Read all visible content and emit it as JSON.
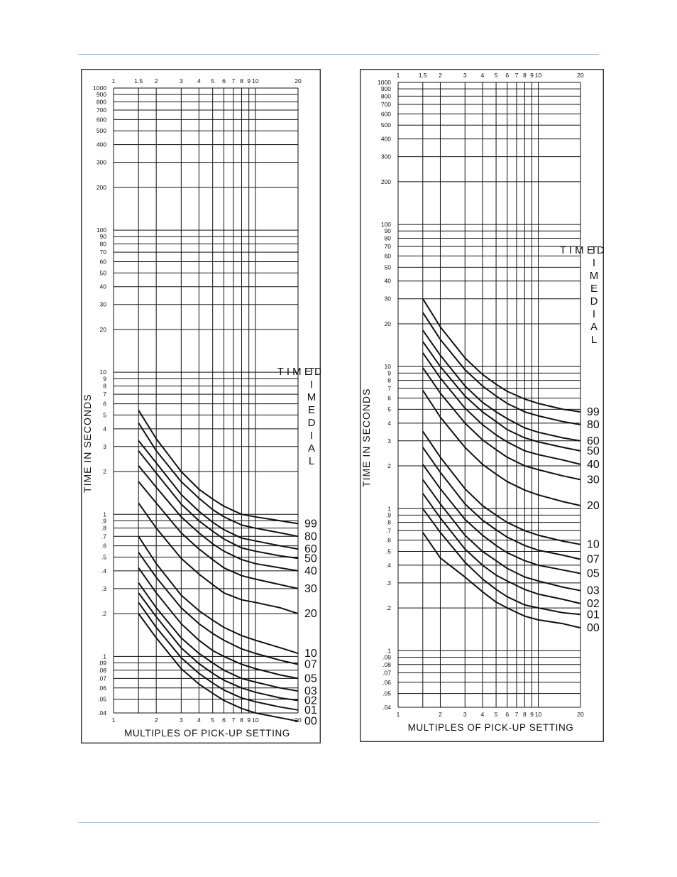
{
  "page": {
    "accent_color": "#8fb6d6"
  },
  "chart_data": [
    {
      "type": "line",
      "x_scale": "log",
      "y_scale": "log",
      "xlim": [
        1,
        20
      ],
      "ylim": [
        0.04,
        1000
      ],
      "xlabel": "MULTIPLES OF PICK-UP SETTING",
      "ylabel": "TIME IN SECONDS",
      "side_label": "T I M E D I A L",
      "x_ticks": [
        1,
        1.5,
        2,
        3,
        4,
        5,
        6,
        7,
        8,
        9,
        10,
        20
      ],
      "x_tick_labels_top": [
        "1",
        "1.5",
        "2",
        "3",
        "4",
        "5",
        "6",
        "7",
        "8",
        "9",
        "10",
        "20"
      ],
      "x_tick_labels_bottom": [
        "1",
        "2",
        "3",
        "4",
        "5",
        "6",
        "7",
        "8",
        "9",
        "10",
        "20"
      ],
      "y_tick_labels": [
        "1000",
        "900",
        "800",
        "700",
        "600",
        "500",
        "400",
        "300",
        "200",
        "100",
        "90",
        "80",
        "70",
        "60",
        "50",
        "40",
        "30",
        "20",
        "10",
        "9",
        "8",
        "7",
        "6",
        "5",
        "4",
        "3",
        "2",
        "1",
        ".9",
        ".8",
        ".7",
        ".6",
        ".5",
        ".4",
        ".3",
        ".2",
        ".1",
        ".09",
        ".08",
        ".07",
        ".06",
        ".05",
        ".04"
      ],
      "grid": true,
      "x": [
        1.5,
        2,
        3,
        4,
        5,
        6,
        8,
        10,
        15,
        20
      ],
      "series": [
        {
          "name": "99",
          "values": [
            5.4,
            3.4,
            2.0,
            1.5,
            1.28,
            1.14,
            1.0,
            0.96,
            0.9,
            0.86
          ]
        },
        {
          "name": "80",
          "values": [
            4.4,
            2.8,
            1.7,
            1.3,
            1.08,
            0.96,
            0.84,
            0.8,
            0.74,
            0.7
          ]
        },
        {
          "name": "60",
          "values": [
            3.3,
            2.3,
            1.38,
            1.05,
            0.88,
            0.78,
            0.68,
            0.65,
            0.6,
            0.57
          ]
        },
        {
          "name": "50",
          "values": [
            2.8,
            1.95,
            1.18,
            0.9,
            0.76,
            0.67,
            0.58,
            0.55,
            0.51,
            0.49
          ]
        },
        {
          "name": "40",
          "values": [
            2.2,
            1.55,
            0.96,
            0.74,
            0.62,
            0.55,
            0.48,
            0.45,
            0.42,
            0.4
          ]
        },
        {
          "name": "30",
          "values": [
            1.7,
            1.2,
            0.74,
            0.57,
            0.48,
            0.42,
            0.37,
            0.35,
            0.32,
            0.3
          ]
        },
        {
          "name": "20",
          "values": [
            1.2,
            0.8,
            0.49,
            0.38,
            0.32,
            0.28,
            0.25,
            0.24,
            0.22,
            0.2
          ]
        },
        {
          "name": "10",
          "values": [
            0.7,
            0.45,
            0.27,
            0.21,
            0.18,
            0.16,
            0.14,
            0.13,
            0.115,
            0.105
          ]
        },
        {
          "name": "07",
          "values": [
            0.54,
            0.36,
            0.22,
            0.17,
            0.145,
            0.13,
            0.113,
            0.105,
            0.094,
            0.088
          ]
        },
        {
          "name": "05",
          "values": [
            0.42,
            0.28,
            0.17,
            0.13,
            0.11,
            0.1,
            0.088,
            0.082,
            0.074,
            0.07
          ]
        },
        {
          "name": "03",
          "values": [
            0.33,
            0.22,
            0.135,
            0.105,
            0.09,
            0.08,
            0.07,
            0.066,
            0.06,
            0.057
          ]
        },
        {
          "name": "02",
          "values": [
            0.28,
            0.19,
            0.115,
            0.089,
            0.076,
            0.068,
            0.06,
            0.056,
            0.051,
            0.049
          ]
        },
        {
          "name": "01",
          "values": [
            0.24,
            0.16,
            0.098,
            0.076,
            0.065,
            0.058,
            0.051,
            0.048,
            0.044,
            0.042
          ]
        },
        {
          "name": "00",
          "values": [
            0.2,
            0.135,
            0.082,
            0.064,
            0.055,
            0.049,
            0.043,
            0.04,
            0.037,
            0.035
          ]
        }
      ]
    },
    {
      "type": "line",
      "x_scale": "log",
      "y_scale": "log",
      "xlim": [
        1,
        20
      ],
      "ylim": [
        0.04,
        1000
      ],
      "xlabel": "MULTIPLES OF PICK-UP SETTING",
      "ylabel": "TIME IN SECONDS",
      "side_label": "T I M E D I A L",
      "x_ticks": [
        1,
        1.5,
        2,
        3,
        4,
        5,
        6,
        7,
        8,
        9,
        10,
        20
      ],
      "x_tick_labels_top": [
        "1",
        "1.5",
        "2",
        "3",
        "4",
        "5",
        "6",
        "7",
        "8",
        "9",
        "10",
        "20"
      ],
      "x_tick_labels_bottom": [
        "1",
        "2",
        "3",
        "4",
        "5",
        "6",
        "7",
        "8",
        "9",
        "10",
        "20"
      ],
      "y_tick_labels": [
        "1000",
        "900",
        "800",
        "700",
        "600",
        "500",
        "400",
        "300",
        "200",
        "100",
        "90",
        "80",
        "70",
        "60",
        "50",
        "40",
        "30",
        "20",
        "10",
        "9",
        "8",
        "7",
        "6",
        "5",
        "4",
        "3",
        "2",
        "1",
        ".9",
        ".8",
        ".7",
        ".6",
        ".5",
        ".4",
        ".3",
        ".2",
        ".1",
        ".09",
        ".08",
        ".07",
        ".06",
        ".05",
        ".04"
      ],
      "grid": true,
      "x": [
        1.5,
        2,
        3,
        4,
        5,
        6,
        8,
        10,
        15,
        20
      ],
      "series": [
        {
          "name": "99",
          "values": [
            30,
            19,
            11.5,
            8.8,
            7.5,
            6.7,
            5.9,
            5.5,
            5.0,
            4.8
          ]
        },
        {
          "name": "80",
          "values": [
            24,
            15.5,
            9.5,
            7.3,
            6.2,
            5.5,
            4.8,
            4.5,
            4.1,
            3.9
          ]
        },
        {
          "name": "60",
          "values": [
            18,
            12,
            7.3,
            5.6,
            4.8,
            4.3,
            3.7,
            3.45,
            3.15,
            3.0
          ]
        },
        {
          "name": "50",
          "values": [
            15,
            10,
            6.2,
            4.8,
            4.1,
            3.6,
            3.15,
            2.95,
            2.7,
            2.55
          ]
        },
        {
          "name": "40",
          "values": [
            12.5,
            8.3,
            5.1,
            3.9,
            3.3,
            2.95,
            2.55,
            2.4,
            2.2,
            2.05
          ]
        },
        {
          "name": "30",
          "values": [
            9.8,
            6.5,
            4.0,
            3.05,
            2.6,
            2.3,
            2.0,
            1.88,
            1.7,
            1.6
          ]
        },
        {
          "name": "20",
          "values": [
            6.8,
            4.4,
            2.7,
            2.05,
            1.75,
            1.55,
            1.35,
            1.25,
            1.12,
            1.05
          ]
        },
        {
          "name": "10",
          "values": [
            3.5,
            2.3,
            1.38,
            1.05,
            0.9,
            0.8,
            0.7,
            0.65,
            0.59,
            0.56
          ]
        },
        {
          "name": "07",
          "values": [
            2.7,
            1.8,
            1.08,
            0.83,
            0.71,
            0.63,
            0.55,
            0.51,
            0.47,
            0.44
          ]
        },
        {
          "name": "05",
          "values": [
            2.05,
            1.38,
            0.84,
            0.65,
            0.55,
            0.49,
            0.43,
            0.4,
            0.37,
            0.35
          ]
        },
        {
          "name": "03",
          "values": [
            1.6,
            1.08,
            0.65,
            0.5,
            0.43,
            0.38,
            0.33,
            0.31,
            0.28,
            0.265
          ]
        },
        {
          "name": "02",
          "values": [
            1.28,
            0.86,
            0.52,
            0.4,
            0.34,
            0.31,
            0.27,
            0.25,
            0.23,
            0.215
          ]
        },
        {
          "name": "01",
          "values": [
            1.0,
            0.68,
            0.42,
            0.32,
            0.27,
            0.24,
            0.21,
            0.2,
            0.185,
            0.18
          ]
        },
        {
          "name": "00",
          "values": [
            0.68,
            0.45,
            0.33,
            0.26,
            0.22,
            0.2,
            0.175,
            0.165,
            0.155,
            0.145
          ]
        }
      ]
    }
  ]
}
